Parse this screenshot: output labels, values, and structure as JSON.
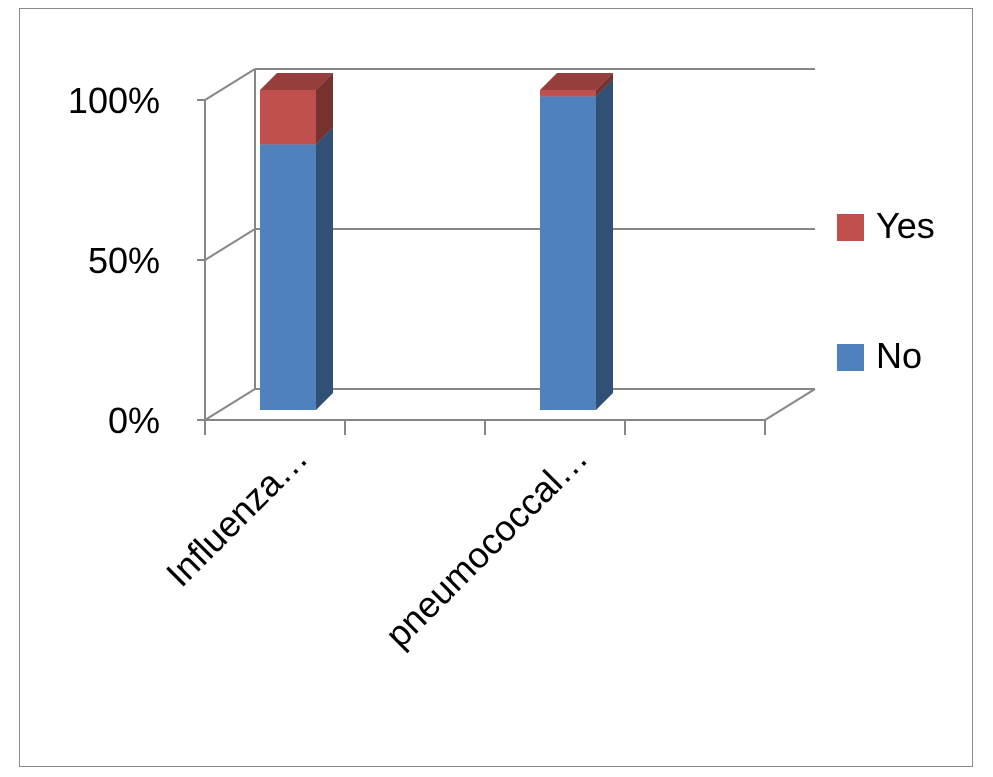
{
  "chart_data": {
    "type": "bar",
    "stacked": true,
    "percent_stacked": true,
    "three_d": true,
    "categories": [
      "Influenza…",
      "pneumococcal…"
    ],
    "series": [
      {
        "name": "No",
        "values": [
          83,
          98
        ],
        "color": "#4F81BD"
      },
      {
        "name": "Yes",
        "values": [
          17,
          2
        ],
        "color": "#C0504D"
      }
    ],
    "yticks": [
      "0%",
      "50%",
      "100%"
    ],
    "ylim": [
      0,
      100
    ],
    "legend_position": "right",
    "grid": true
  }
}
